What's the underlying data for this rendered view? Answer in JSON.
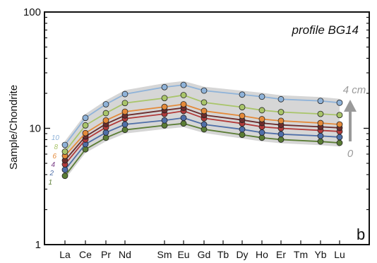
{
  "chart_data": {
    "type": "line",
    "title": "profile BG14",
    "panel_label": "b",
    "ylabel": "Sample/Chondrite",
    "xlabel": "",
    "y_scale": "log",
    "ylim": [
      1,
      100
    ],
    "y_ticks": [
      {
        "value": 1,
        "label": "1"
      },
      {
        "value": 10,
        "label": "10"
      },
      {
        "value": 100,
        "label": "100"
      }
    ],
    "categories": [
      "La",
      "Ce",
      "Pr",
      "Nd",
      "Sm",
      "Eu",
      "Gd",
      "Tb",
      "Dy",
      "Ho",
      "Er",
      "Tm",
      "Yb",
      "Lu"
    ],
    "series": [
      {
        "name": "1",
        "color": "#5b7d35",
        "values": [
          3.9,
          6.6,
          8.3,
          9.7,
          10.6,
          11.0,
          9.8,
          null,
          8.8,
          8.3,
          8.0,
          null,
          7.7,
          7.5
        ]
      },
      {
        "name": "2",
        "color": "#4f6fa8",
        "values": [
          4.4,
          7.3,
          9.2,
          10.8,
          11.7,
          12.3,
          10.8,
          null,
          9.8,
          9.2,
          8.9,
          null,
          8.6,
          8.4
        ]
      },
      {
        "name": "4",
        "color": "#7b3f86",
        "values": null
      },
      {
        "name": "6",
        "color": "#e48a3a",
        "values": [
          5.8,
          9.1,
          11.7,
          13.9,
          15.3,
          16.1,
          14.1,
          null,
          12.8,
          12.0,
          11.6,
          null,
          11.1,
          10.8
        ]
      },
      {
        "name": "8",
        "color": "#a9c56a",
        "values": [
          6.3,
          10.6,
          13.5,
          16.5,
          18.2,
          19.3,
          16.7,
          null,
          15.2,
          14.3,
          13.8,
          null,
          13.3,
          13.0
        ]
      },
      {
        "name": "10",
        "color": "#8fb3d9",
        "values": [
          7.2,
          12.3,
          16.1,
          19.7,
          22.6,
          23.6,
          21.1,
          null,
          19.5,
          18.7,
          17.8,
          null,
          17.2,
          16.6
        ]
      }
    ],
    "extra_series": [
      {
        "name": "",
        "color": "#b23a3a",
        "values": [
          4.9,
          8.0,
          10.2,
          12.1,
          13.3,
          14.1,
          12.2,
          null,
          11.0,
          10.3,
          10.0,
          null,
          9.6,
          9.4
        ]
      },
      {
        "name": "",
        "color": "#6b2d2d",
        "values": [
          5.3,
          8.5,
          10.9,
          12.9,
          14.3,
          15.0,
          13.0,
          null,
          11.8,
          11.1,
          10.7,
          null,
          10.3,
          10.1
        ]
      }
    ],
    "series_label_text": [
      "10",
      "8",
      "6",
      "4",
      "2",
      "1"
    ],
    "series_label_colors": [
      "#8fb3d9",
      "#a9c56a",
      "#e48a3a",
      "#7b3f86",
      "#4f6fa8",
      "#5b7d35"
    ],
    "envelope_color": "#d6d6d6",
    "arrow": {
      "top_label": "4 cm",
      "bottom_label": "0",
      "color": "#9a9a9a"
    }
  }
}
